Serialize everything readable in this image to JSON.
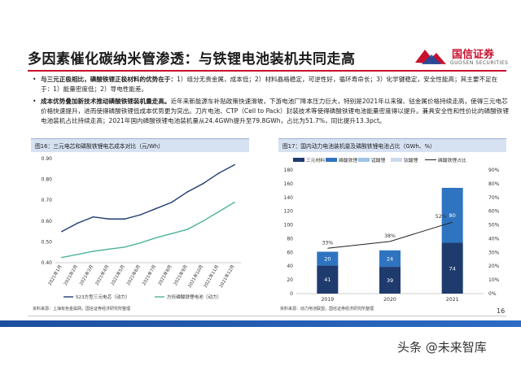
{
  "page": {
    "title": "多因素催化碳纳米管渗透：与铁锂电池装机共同走高",
    "page_number": "16",
    "watermark": "头条 @未来智库"
  },
  "logo": {
    "name": "国信证券",
    "sub": "GUOSEN SECURITIES",
    "color": "#c8102e"
  },
  "bullets": [
    {
      "bold": "与三元正极相比，磷酸铁锂正极材料的优势在于：",
      "text": "1）组分无贵金属，成本低；2）材料晶格稳定，可逆性好，循环寿命长；3）化学键稳定，安全性能高；其主要不足在于：1）能量密度低；2）导电性能差。"
    },
    {
      "bold": "成本优势叠加新技术推动磷酸铁锂装机量走高。",
      "text": "近年来新能源车补贴政策快速滑坡，下游电池厂降本压力巨大，特别是2021年以来镍、钴金属价格持续走高，使得三元电芯价格快速提升，进而使得磷酸铁锂低成本优势更为突出。刀片电池、CTP（Cell to Pack）封装技术等使得磷酸铁锂电池能量密度得以提升。兼具安全性和性价比的磷酸铁锂电池装机占比持续走高；2021年国内磷酸铁锂电池装机量从24.4GWh提升至79.8GWh，占比为51.7%，同比提升13.3pct。"
    }
  ],
  "left_panel": {
    "caption": "图16：三元电芯和磷酸铁锂电芯成本对比（元/Wh）",
    "source": "资料来源：上海有色金属网，国信证券经济研究所整理"
  },
  "right_panel": {
    "caption": "图17：国内动力电池装机量及磷酸铁锂电池占比（GWh、%）",
    "source": "资料来源：动力电池联盟，国信证券经济研究所整理"
  },
  "chart_data": [
    {
      "type": "line",
      "title": "",
      "categories": [
        "2021年1月",
        "2021年2月",
        "2021年3月",
        "2021年4月",
        "2021年5月",
        "2021年6月",
        "2021年7月",
        "2021年8月",
        "2021年9月",
        "2021年10月",
        "2021年11月",
        "2021年12月"
      ],
      "series": [
        {
          "name": "523方型三元电芯（动力）",
          "color": "#1f3b6e",
          "values": [
            0.55,
            0.59,
            0.62,
            0.61,
            0.61,
            0.63,
            0.66,
            0.69,
            0.74,
            0.78,
            0.83,
            0.87
          ]
        },
        {
          "name": "方形磷酸铁锂电池（动力）",
          "color": "#4fb39d",
          "values": [
            0.425,
            0.44,
            0.455,
            0.465,
            0.475,
            0.495,
            0.52,
            0.54,
            0.56,
            0.6,
            0.645,
            0.69
          ]
        }
      ],
      "ylim": [
        0.4,
        0.9
      ],
      "yticks": [
        "0.90",
        "0.80",
        "0.70",
        "0.60",
        "0.50",
        "0.40"
      ],
      "grid": false,
      "legend": "bottom"
    },
    {
      "type": "bar",
      "title": "",
      "categories": [
        "2019",
        "2020",
        "2021"
      ],
      "series": [
        {
          "name": "三元材料",
          "color": "#1f3b6e",
          "values": [
            41,
            39,
            74
          ]
        },
        {
          "name": "磷酸铁锂",
          "color": "#2f74c0",
          "values": [
            20,
            24,
            80
          ]
        },
        {
          "name": "锰酸锂",
          "color": "#9dc3e6",
          "values": [
            0,
            0,
            0
          ]
        },
        {
          "name": "钛酸锂",
          "color": "#c9d9ee",
          "values": [
            0,
            0,
            0
          ]
        }
      ],
      "line_series": {
        "name": "磷酸铁锂占比",
        "color": "#222222",
        "values": [
          33,
          38,
          52
        ],
        "labels": [
          "33%",
          "38%",
          "52%"
        ]
      },
      "ylim": [
        0,
        180
      ],
      "yticks": [
        "180",
        "160",
        "140",
        "120",
        "100",
        "80",
        "60",
        "40",
        "20",
        "0"
      ],
      "y2lim": [
        0,
        90
      ],
      "y2ticks": [
        "90%",
        "80%",
        "70%",
        "60%",
        "50%",
        "40%",
        "30%",
        "20%",
        "10%",
        "0%"
      ],
      "legend": "top"
    }
  ]
}
